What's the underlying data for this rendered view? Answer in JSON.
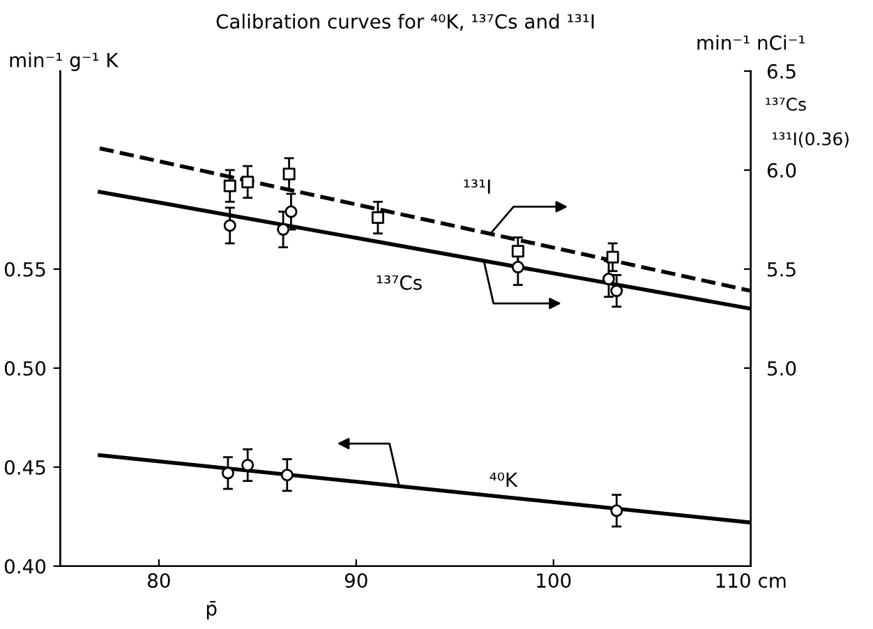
{
  "chart_data": {
    "type": "scatter",
    "title": "Calibration curves for ⁴⁰K, ¹³⁷Cs and ¹³¹I",
    "xlabel": "p̄",
    "ylabel": "min⁻¹ g⁻¹ K",
    "y2label": "min⁻¹ nCi⁻¹",
    "annotations": [
      "¹³⁷Cs",
      "¹³¹I(0.36)"
    ],
    "xlim": [
      75,
      110
    ],
    "xticks": [
      80,
      90,
      100,
      {
        "value": 110,
        "label": "110 cm"
      }
    ],
    "ylim": [
      0.4,
      0.65
    ],
    "yticks": [
      {
        "value": 0.4,
        "label": "0.40"
      },
      {
        "value": 0.45,
        "label": "0.45"
      },
      {
        "value": 0.5,
        "label": "0.50"
      },
      {
        "value": 0.55,
        "label": "0.55"
      }
    ],
    "y2lim": [
      4.0,
      6.5
    ],
    "y2ticks": [
      {
        "value": 5.0,
        "label": "5.0"
      },
      {
        "value": 5.5,
        "label": "5.5"
      },
      {
        "value": 6.0,
        "label": "6.0"
      },
      {
        "value": 6.5,
        "label": "6.5"
      }
    ],
    "grid": false,
    "legend": false,
    "series": [
      {
        "type": "line",
        "name": "¹³¹I",
        "axis": "y2",
        "color": "#000000",
        "line_style": "dashed",
        "marker": "none",
        "x": [
          77,
          110
        ],
        "values": [
          6.11,
          5.39
        ]
      },
      {
        "type": "line",
        "name": "¹³⁷Cs",
        "axis": "y2",
        "color": "#000000",
        "line_style": "solid",
        "marker": "none",
        "x": [
          77,
          110
        ],
        "values": [
          5.89,
          5.3
        ]
      },
      {
        "type": "line",
        "name": "⁴⁰K",
        "axis": "y",
        "color": "#000000",
        "line_style": "solid",
        "marker": "none",
        "x": [
          77,
          110
        ],
        "values": [
          0.456,
          0.422
        ]
      },
      {
        "axis": "y2",
        "color": "#000000",
        "marker": "square",
        "x": [
          83.6,
          84.5,
          86.6,
          91.1,
          98.2,
          103.0
        ],
        "values": [
          5.92,
          5.94,
          5.98,
          5.76,
          5.59,
          5.56
        ],
        "errors": [
          0.08,
          0.08,
          0.08,
          0.08,
          0.07,
          0.07
        ]
      },
      {
        "axis": "y2",
        "color": "#000000",
        "marker": "circle",
        "x": [
          83.6,
          86.3,
          86.7,
          98.2,
          102.8,
          103.2
        ],
        "values": [
          5.72,
          5.7,
          5.79,
          5.51,
          5.45,
          5.39
        ],
        "errors": [
          0.09,
          0.09,
          0.09,
          0.09,
          0.09,
          0.08
        ]
      },
      {
        "axis": "y",
        "color": "#000000",
        "marker": "circle",
        "x": [
          83.5,
          84.5,
          86.5,
          103.2
        ],
        "values": [
          0.447,
          0.451,
          0.446,
          0.428
        ],
        "errors": [
          0.008,
          0.008,
          0.008,
          0.008
        ]
      }
    ]
  }
}
